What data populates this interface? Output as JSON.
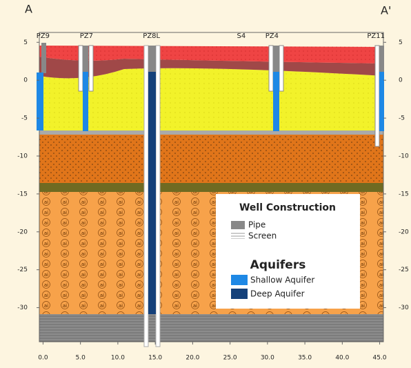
{
  "section": {
    "left_label": "A",
    "right_label": "A'"
  },
  "wells": [
    {
      "label": "PZ9",
      "x": 0.0
    },
    {
      "label": "PZ7",
      "x": 5.8
    },
    {
      "label": "PZ8L",
      "x": 14.5
    },
    {
      "label": "S4",
      "x": 26.5
    },
    {
      "label": "PZ4",
      "x": 30.6
    },
    {
      "label": "PZ11",
      "x": 44.5
    }
  ],
  "axes": {
    "xlim": [
      -0.5,
      45.5
    ],
    "ylim": [
      -34.5,
      6.3
    ],
    "xticks": [
      {
        "value": 0,
        "label": "0.0"
      },
      {
        "value": 5,
        "label": "5.0"
      },
      {
        "value": 10,
        "label": "10.0"
      },
      {
        "value": 15,
        "label": "15.0"
      },
      {
        "value": 20,
        "label": "20.0"
      },
      {
        "value": 25,
        "label": "25.0"
      },
      {
        "value": 30,
        "label": "30.0"
      },
      {
        "value": 35,
        "label": "35.0"
      },
      {
        "value": 40,
        "label": "40.0"
      },
      {
        "value": 45,
        "label": "45.0"
      }
    ],
    "yticks": [
      5,
      0,
      -5,
      -10,
      -15,
      -20,
      -25,
      -30
    ]
  },
  "legend": {
    "construction_title": "Well Construction",
    "construction_items": [
      "Pipe",
      "Screen"
    ],
    "aquifer_title": "Aquifers",
    "aquifer_items": [
      "Shallow Aquifer",
      "Deep Aquifer"
    ]
  }
}
